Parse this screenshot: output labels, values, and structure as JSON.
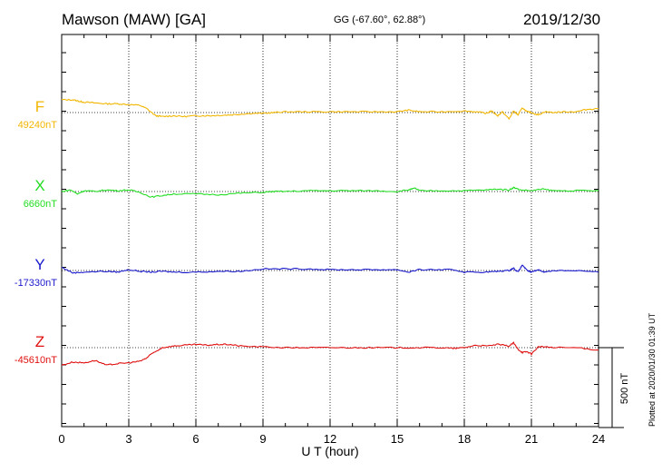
{
  "header": {
    "station": "Mawson (MAW)  [GA]",
    "coords": "GG (-67.60°,  62.88°)",
    "date": "2019/12/30"
  },
  "footer": {
    "plotted": "Plotted at 2020/01/30 01:39 UT"
  },
  "chart_data": {
    "type": "line",
    "xlabel": "U T (hour)",
    "xlim": [
      0,
      24
    ],
    "xticks": [
      "0",
      "3",
      "6",
      "9",
      "12",
      "15",
      "18",
      "21",
      "24"
    ],
    "grid": true,
    "scale_bar": {
      "label": "500 nT",
      "value_nT": 500
    },
    "series": [
      {
        "name": "F",
        "baseline_label": "49240nT",
        "baseline_nT": 49240,
        "color": "#f2b600",
        "points": [
          [
            0,
            80
          ],
          [
            0.5,
            80
          ],
          [
            0.8,
            70
          ],
          [
            1,
            65
          ],
          [
            1.5,
            60
          ],
          [
            2,
            55
          ],
          [
            2.5,
            55
          ],
          [
            3,
            50
          ],
          [
            3.5,
            45
          ],
          [
            3.8,
            25
          ],
          [
            4.2,
            -20
          ],
          [
            4.5,
            -25
          ],
          [
            5,
            -20
          ],
          [
            5.5,
            -25
          ],
          [
            6,
            -20
          ],
          [
            6.5,
            -20
          ],
          [
            7,
            -18
          ],
          [
            7.5,
            -15
          ],
          [
            8,
            -10
          ],
          [
            8.5,
            -5
          ],
          [
            9,
            -5
          ],
          [
            9.5,
            0
          ],
          [
            10,
            5
          ],
          [
            11,
            5
          ],
          [
            12,
            5
          ],
          [
            13,
            5
          ],
          [
            14,
            5
          ],
          [
            15,
            5
          ],
          [
            15.5,
            15
          ],
          [
            16,
            5
          ],
          [
            17,
            5
          ],
          [
            18,
            10
          ],
          [
            18.5,
            5
          ],
          [
            19,
            -5
          ],
          [
            19.2,
            10
          ],
          [
            19.5,
            -20
          ],
          [
            19.7,
            5
          ],
          [
            20,
            -40
          ],
          [
            20.2,
            10
          ],
          [
            20.4,
            -15
          ],
          [
            20.6,
            30
          ],
          [
            20.8,
            5
          ],
          [
            21,
            0
          ],
          [
            21.3,
            -15
          ],
          [
            21.6,
            5
          ],
          [
            22,
            0
          ],
          [
            22.5,
            5
          ],
          [
            23,
            5
          ],
          [
            23.5,
            20
          ],
          [
            24,
            25
          ]
        ]
      },
      {
        "name": "X",
        "baseline_label": "6660nT",
        "baseline_nT": 6660,
        "color": "#22dd22",
        "points": [
          [
            0,
            0
          ],
          [
            0.4,
            10
          ],
          [
            0.7,
            -15
          ],
          [
            1,
            5
          ],
          [
            1.5,
            0
          ],
          [
            2,
            10
          ],
          [
            2.5,
            5
          ],
          [
            3,
            10
          ],
          [
            3.5,
            -5
          ],
          [
            4,
            -35
          ],
          [
            4.5,
            -25
          ],
          [
            5,
            -15
          ],
          [
            6,
            -15
          ],
          [
            7,
            -20
          ],
          [
            8,
            -10
          ],
          [
            9,
            -5
          ],
          [
            9.5,
            0
          ],
          [
            10,
            0
          ],
          [
            11,
            5
          ],
          [
            12,
            5
          ],
          [
            13,
            5
          ],
          [
            14,
            5
          ],
          [
            15,
            0
          ],
          [
            15.5,
            10
          ],
          [
            15.8,
            20
          ],
          [
            16,
            5
          ],
          [
            17,
            5
          ],
          [
            18,
            5
          ],
          [
            19,
            10
          ],
          [
            19.5,
            15
          ],
          [
            20,
            10
          ],
          [
            20.2,
            25
          ],
          [
            20.5,
            10
          ],
          [
            21,
            5
          ],
          [
            21.5,
            15
          ],
          [
            22,
            5
          ],
          [
            23,
            5
          ],
          [
            24,
            5
          ]
        ]
      },
      {
        "name": "Y",
        "baseline_label": "-17330nT",
        "baseline_nT": -17330,
        "color": "#1a1acc",
        "points": [
          [
            0,
            20
          ],
          [
            0.5,
            -15
          ],
          [
            1,
            -10
          ],
          [
            2,
            -5
          ],
          [
            2.5,
            -10
          ],
          [
            3,
            5
          ],
          [
            3.5,
            -5
          ],
          [
            4,
            -10
          ],
          [
            4.5,
            -5
          ],
          [
            5,
            -10
          ],
          [
            6,
            -10
          ],
          [
            7,
            -5
          ],
          [
            8,
            -5
          ],
          [
            9,
            10
          ],
          [
            10,
            10
          ],
          [
            11,
            10
          ],
          [
            12,
            5
          ],
          [
            13,
            5
          ],
          [
            14,
            5
          ],
          [
            15,
            5
          ],
          [
            15.5,
            -10
          ],
          [
            16,
            5
          ],
          [
            17,
            5
          ],
          [
            17.5,
            5
          ],
          [
            18,
            -10
          ],
          [
            19,
            -10
          ],
          [
            19.5,
            -5
          ],
          [
            20,
            0
          ],
          [
            20.2,
            15
          ],
          [
            20.4,
            -10
          ],
          [
            20.6,
            35
          ],
          [
            20.8,
            0
          ],
          [
            21,
            -10
          ],
          [
            21.3,
            5
          ],
          [
            21.6,
            -10
          ],
          [
            22,
            0
          ],
          [
            23,
            0
          ],
          [
            24,
            -10
          ]
        ]
      },
      {
        "name": "Z",
        "baseline_label": "-45610nT",
        "baseline_nT": -45610,
        "color": "#e01010",
        "points": [
          [
            0,
            -110
          ],
          [
            0.5,
            -90
          ],
          [
            1,
            -95
          ],
          [
            1.5,
            -80
          ],
          [
            2,
            -110
          ],
          [
            2.5,
            -100
          ],
          [
            3,
            -95
          ],
          [
            3.5,
            -85
          ],
          [
            3.8,
            -65
          ],
          [
            4,
            -40
          ],
          [
            4.5,
            0
          ],
          [
            5,
            10
          ],
          [
            5.5,
            15
          ],
          [
            6,
            20
          ],
          [
            6.5,
            15
          ],
          [
            7,
            20
          ],
          [
            7.5,
            20
          ],
          [
            8,
            10
          ],
          [
            9,
            5
          ],
          [
            10,
            0
          ],
          [
            11,
            0
          ],
          [
            12,
            0
          ],
          [
            13,
            0
          ],
          [
            14,
            0
          ],
          [
            15,
            0
          ],
          [
            16,
            0
          ],
          [
            17,
            0
          ],
          [
            17.5,
            -5
          ],
          [
            18,
            0
          ],
          [
            18.5,
            15
          ],
          [
            19,
            10
          ],
          [
            19.5,
            20
          ],
          [
            20,
            10
          ],
          [
            20.2,
            30
          ],
          [
            20.4,
            -10
          ],
          [
            20.6,
            -30
          ],
          [
            20.8,
            -25
          ],
          [
            21,
            -40
          ],
          [
            21.3,
            5
          ],
          [
            21.6,
            5
          ],
          [
            22,
            0
          ],
          [
            23,
            0
          ],
          [
            24,
            -15
          ]
        ]
      }
    ]
  }
}
